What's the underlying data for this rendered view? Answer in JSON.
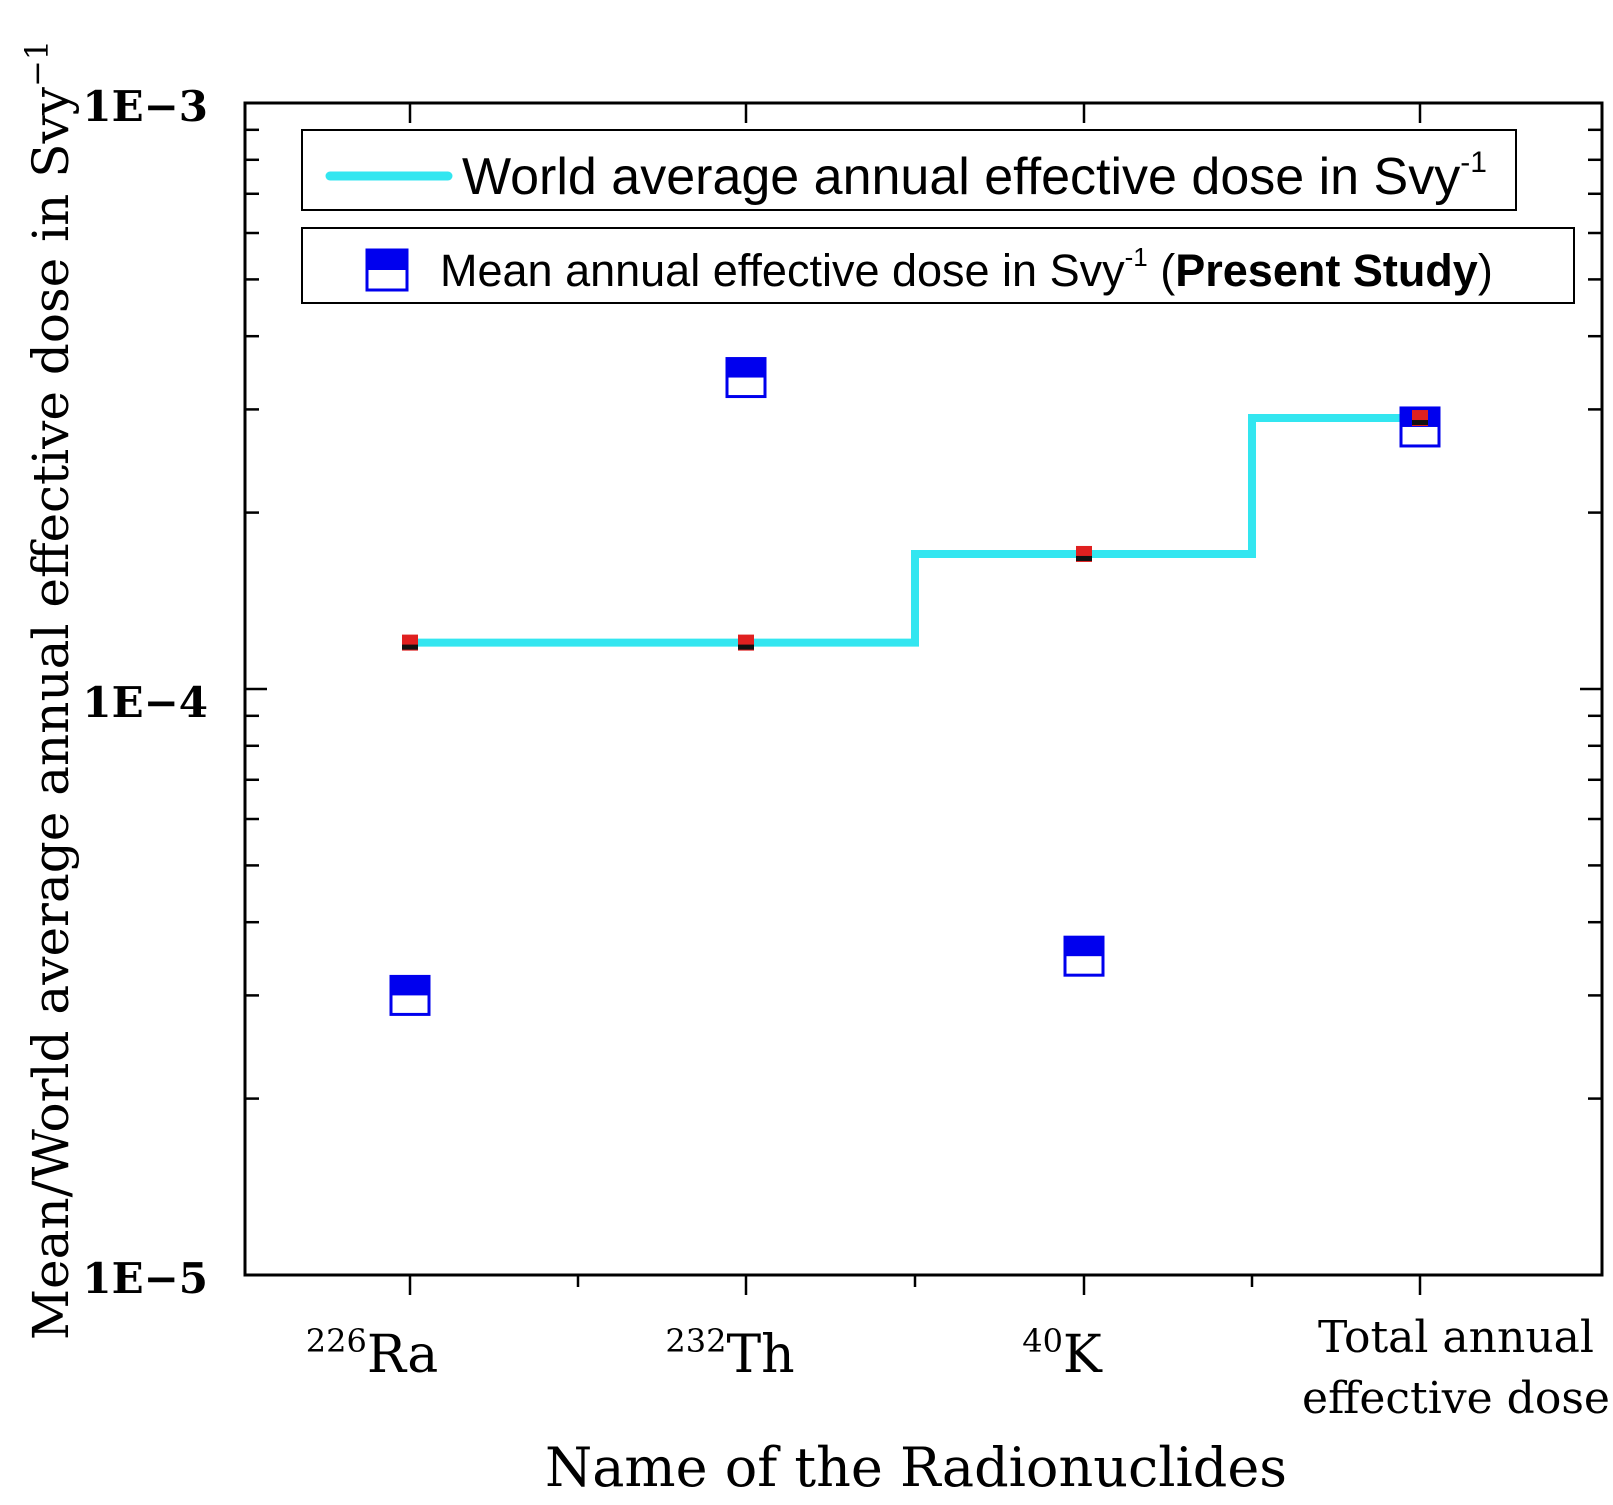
{
  "chart_data": {
    "type": "scatter",
    "yscale": "log",
    "ylim": [
      1e-05,
      0.001
    ],
    "ylabel": "Mean/World average annual effective dose in Svy",
    "ylabel_exponent": "−1",
    "xlabel": "Name of the Radionuclides",
    "ytick_labels": [
      "1E−3",
      "1E−4",
      "1E−5"
    ],
    "categories": [
      {
        "mass": "226",
        "element": "Ra",
        "line1": "",
        "line2": ""
      },
      {
        "mass": "232",
        "element": "Th",
        "line1": "",
        "line2": ""
      },
      {
        "mass": "40",
        "element": "K",
        "line1": "",
        "line2": ""
      },
      {
        "mass": "",
        "element": "",
        "line1": "Total annual",
        "line2": "effective dose"
      }
    ],
    "series": [
      {
        "name": "Mean annual effective dose in Svy",
        "legend_prefix": "Mean  annual effective dose in Svy",
        "legend_exponent": "-1",
        "legend_open": " (",
        "legend_bold": "Present Study",
        "legend_close": ")",
        "marker": "half-filled-square",
        "color": "#0000ee",
        "values": [
          3e-05,
          0.00034,
          3.5e-05,
          0.00028
        ]
      },
      {
        "name": "World average annual effective dose in Svy",
        "legend_prefix": "World average annual effective dose in Svy",
        "legend_exponent": "-1",
        "style": "step-line",
        "color": "#33e6f0",
        "marker_color": "#e02020",
        "values": [
          0.00012,
          0.00012,
          0.00017,
          0.00029
        ]
      }
    ]
  }
}
